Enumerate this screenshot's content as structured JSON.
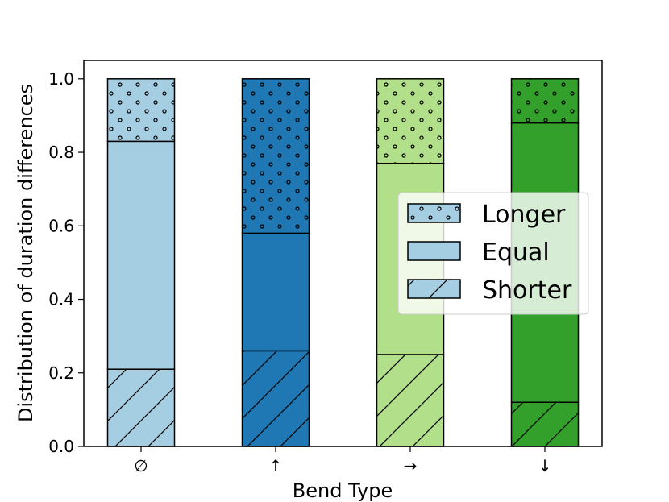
{
  "chart_data": {
    "type": "bar",
    "stacked": true,
    "categories": [
      "∅",
      "↑",
      "→",
      "↓"
    ],
    "series": [
      {
        "name": "Shorter",
        "values": [
          0.21,
          0.26,
          0.25,
          0.12
        ],
        "pattern": "hatch"
      },
      {
        "name": "Equal",
        "values": [
          0.62,
          0.32,
          0.52,
          0.76
        ],
        "pattern": "none"
      },
      {
        "name": "Longer",
        "values": [
          0.17,
          0.42,
          0.23,
          0.12
        ],
        "pattern": "dots"
      }
    ],
    "category_colors": [
      "#a6cee3",
      "#1f78b4",
      "#b2df8a",
      "#33a02c"
    ],
    "legend_color": "#a6cee3",
    "xlabel": "Bend Type",
    "ylabel": "Distribution of duration differences",
    "ylim": [
      0,
      1.05
    ],
    "yticks": [
      "0.0",
      "0.2",
      "0.4",
      "0.6",
      "0.8",
      "1.0"
    ],
    "legend_position": "center-right",
    "grid": false
  }
}
